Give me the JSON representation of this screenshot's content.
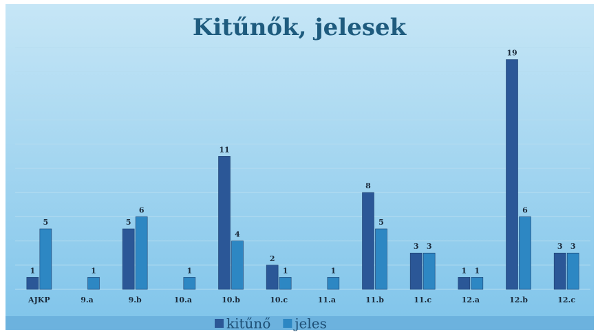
{
  "chart_data": {
    "type": "bar",
    "title": "Kitűnők, jelesek",
    "categories": [
      "AJKP",
      "9.a",
      "9.b",
      "10.a",
      "10.b",
      "10.c",
      "11.a",
      "11.b",
      "11.c",
      "12.a",
      "12.b",
      "12.c"
    ],
    "series": [
      {
        "name": "kitűnő",
        "color": "#2b5797",
        "values": [
          1,
          null,
          5,
          null,
          11,
          2,
          null,
          8,
          3,
          1,
          19,
          3
        ]
      },
      {
        "name": "jeles",
        "color": "#2d87c3",
        "values": [
          5,
          1,
          6,
          1,
          4,
          1,
          1,
          5,
          3,
          1,
          6,
          3
        ]
      }
    ],
    "ylim": [
      0,
      20
    ],
    "yticks": [
      0,
      2,
      4,
      6,
      8,
      10,
      12,
      14,
      16,
      18,
      20
    ],
    "grid": true,
    "legend": "bottom"
  }
}
